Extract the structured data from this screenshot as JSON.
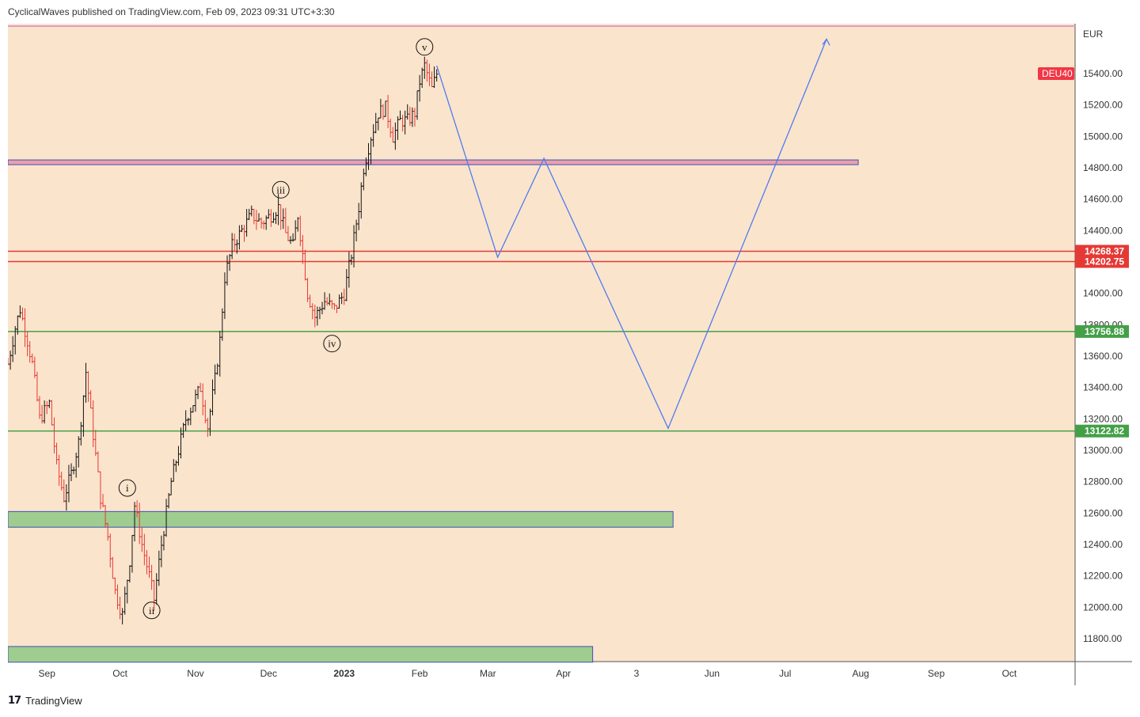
{
  "header": {
    "published": "CyclicalWaves published on TradingView.com, Feb 09, 2023 09:31 UTC+3:30"
  },
  "footer": {
    "brand": "TradingView"
  },
  "chart_data": {
    "type": "candlestick",
    "symbol": "DEU40",
    "currency": "EUR",
    "price_range": [
      11700,
      15620
    ],
    "y_ticks": [
      15400,
      15200,
      15000,
      14800,
      14600,
      14400,
      14200,
      14000,
      13800,
      13600,
      13400,
      13200,
      13000,
      12800,
      12600,
      12400,
      12200,
      12000,
      11800
    ],
    "y_tick_labels": [
      "15400.00",
      "15200.00",
      "15000.00",
      "14800.00",
      "14600.00",
      "14400.00",
      "14200.00",
      "14000.00",
      "13800.00",
      "13600.00",
      "13400.00",
      "13200.00",
      "13000.00",
      "12800.00",
      "12600.00",
      "12400.00",
      "12200.00",
      "12000.00",
      "11800.00"
    ],
    "x_range": [
      "2022-08-16",
      "2023-10-28"
    ],
    "x_ticks": [
      {
        "date": "2022-09-01",
        "label": "Sep"
      },
      {
        "date": "2022-10-01",
        "label": "Oct"
      },
      {
        "date": "2022-11-01",
        "label": "Nov"
      },
      {
        "date": "2022-12-01",
        "label": "Dec"
      },
      {
        "date": "2023-01-01",
        "label": "2023"
      },
      {
        "date": "2023-02-01",
        "label": "Feb"
      },
      {
        "date": "2023-03-01",
        "label": "Mar"
      },
      {
        "date": "2023-04-01",
        "label": "Apr"
      },
      {
        "date": "2023-05-01",
        "label": "3"
      },
      {
        "date": "2023-06-01",
        "label": "Jun"
      },
      {
        "date": "2023-07-01",
        "label": "Jul"
      },
      {
        "date": "2023-08-01",
        "label": "Aug"
      },
      {
        "date": "2023-09-01",
        "label": "Sep"
      },
      {
        "date": "2023-10-01",
        "label": "Oct"
      }
    ],
    "price_path": [
      {
        "date": "2022-08-16",
        "price": 13550
      },
      {
        "date": "2022-08-19",
        "price": 13780
      },
      {
        "date": "2022-08-21",
        "price": 13900
      },
      {
        "date": "2022-08-24",
        "price": 13700
      },
      {
        "date": "2022-08-26",
        "price": 13550
      },
      {
        "date": "2022-08-29",
        "price": 13200
      },
      {
        "date": "2022-09-02",
        "price": 13300
      },
      {
        "date": "2022-09-05",
        "price": 12900
      },
      {
        "date": "2022-09-08",
        "price": 12700
      },
      {
        "date": "2022-09-11",
        "price": 12850
      },
      {
        "date": "2022-09-14",
        "price": 13050
      },
      {
        "date": "2022-09-17",
        "price": 13500
      },
      {
        "date": "2022-09-20",
        "price": 13100
      },
      {
        "date": "2022-09-23",
        "price": 12700
      },
      {
        "date": "2022-09-26",
        "price": 12450
      },
      {
        "date": "2022-09-29",
        "price": 12100
      },
      {
        "date": "2022-10-02",
        "price": 11950
      },
      {
        "date": "2022-10-05",
        "price": 12300
      },
      {
        "date": "2022-10-07",
        "price": 12650
      },
      {
        "date": "2022-10-10",
        "price": 12400
      },
      {
        "date": "2022-10-13",
        "price": 12200
      },
      {
        "date": "2022-10-15",
        "price": 12050
      },
      {
        "date": "2022-10-18",
        "price": 12400
      },
      {
        "date": "2022-10-22",
        "price": 12800
      },
      {
        "date": "2022-10-25",
        "price": 13000
      },
      {
        "date": "2022-10-28",
        "price": 13200
      },
      {
        "date": "2022-10-31",
        "price": 13300
      },
      {
        "date": "2022-11-03",
        "price": 13400
      },
      {
        "date": "2022-11-06",
        "price": 13150
      },
      {
        "date": "2022-11-09",
        "price": 13450
      },
      {
        "date": "2022-11-11",
        "price": 13700
      },
      {
        "date": "2022-11-13",
        "price": 14100
      },
      {
        "date": "2022-11-16",
        "price": 14300
      },
      {
        "date": "2022-11-20",
        "price": 14400
      },
      {
        "date": "2022-11-24",
        "price": 14500
      },
      {
        "date": "2022-11-28",
        "price": 14450
      },
      {
        "date": "2022-12-02",
        "price": 14500
      },
      {
        "date": "2022-12-05",
        "price": 14550
      },
      {
        "date": "2022-12-08",
        "price": 14380
      },
      {
        "date": "2022-12-11",
        "price": 14300
      },
      {
        "date": "2022-12-13",
        "price": 14500
      },
      {
        "date": "2022-12-15",
        "price": 14250
      },
      {
        "date": "2022-12-17",
        "price": 14000
      },
      {
        "date": "2022-12-20",
        "price": 13850
      },
      {
        "date": "2022-12-24",
        "price": 13950
      },
      {
        "date": "2022-12-28",
        "price": 13900
      },
      {
        "date": "2023-01-01",
        "price": 14000
      },
      {
        "date": "2023-01-04",
        "price": 14250
      },
      {
        "date": "2023-01-07",
        "price": 14550
      },
      {
        "date": "2023-01-09",
        "price": 14800
      },
      {
        "date": "2023-01-12",
        "price": 15000
      },
      {
        "date": "2023-01-15",
        "price": 15150
      },
      {
        "date": "2023-01-18",
        "price": 15180
      },
      {
        "date": "2023-01-21",
        "price": 15000
      },
      {
        "date": "2023-01-24",
        "price": 15100
      },
      {
        "date": "2023-01-27",
        "price": 15100
      },
      {
        "date": "2023-01-30",
        "price": 15150
      },
      {
        "date": "2023-02-01",
        "price": 15350
      },
      {
        "date": "2023-02-03",
        "price": 15450
      },
      {
        "date": "2023-02-06",
        "price": 15300
      },
      {
        "date": "2023-02-08",
        "price": 15400
      }
    ],
    "horizontal_lines": [
      {
        "price": 14268.37,
        "label": "14268.37",
        "color": "#e53935"
      },
      {
        "price": 14202.75,
        "label": "14202.75",
        "color": "#e53935"
      },
      {
        "price": 13756.88,
        "label": "13756.88",
        "color": "#43a047"
      },
      {
        "price": 13122.82,
        "label": "13122.82",
        "color": "#43a047"
      }
    ],
    "last_price_tag": {
      "label": "DEU40",
      "price": 15400,
      "color": "#f23645"
    },
    "zones": [
      {
        "from_date": "2022-08-16",
        "to_date": "2023-07-31",
        "top": 14850,
        "bottom": 14820,
        "fill": "#e8a0ad",
        "border": "#3f51b5"
      },
      {
        "from_date": "2022-08-16",
        "to_date": "2023-05-16",
        "top": 12610,
        "bottom": 12510,
        "fill": "#9fcc8f",
        "border": "#3f51b5"
      },
      {
        "from_date": "2022-08-16",
        "to_date": "2023-04-13",
        "top": 11750,
        "bottom": 11650,
        "fill": "#9fcc8f",
        "border": "#3f51b5"
      }
    ],
    "top_line": {
      "price": 15620,
      "color": "#d9a0c8"
    },
    "projection": {
      "color": "#4e7cf0",
      "points": [
        {
          "date": "2023-02-08",
          "price": 15450
        },
        {
          "date": "2023-03-05",
          "price": 14230
        },
        {
          "date": "2023-03-24",
          "price": 14860
        },
        {
          "date": "2023-05-14",
          "price": 13140
        },
        {
          "date": "2023-07-18",
          "price": 15620
        }
      ]
    },
    "wave_labels": [
      {
        "text": "i",
        "date": "2022-10-04",
        "price": 12760
      },
      {
        "text": "ii",
        "date": "2022-10-14",
        "price": 11980
      },
      {
        "text": "iii",
        "date": "2022-12-06",
        "price": 14660
      },
      {
        "text": "iv",
        "date": "2022-12-27",
        "price": 13680
      },
      {
        "text": "v",
        "date": "2023-02-03",
        "price": 15570
      }
    ],
    "background": "#fbe4cc"
  }
}
